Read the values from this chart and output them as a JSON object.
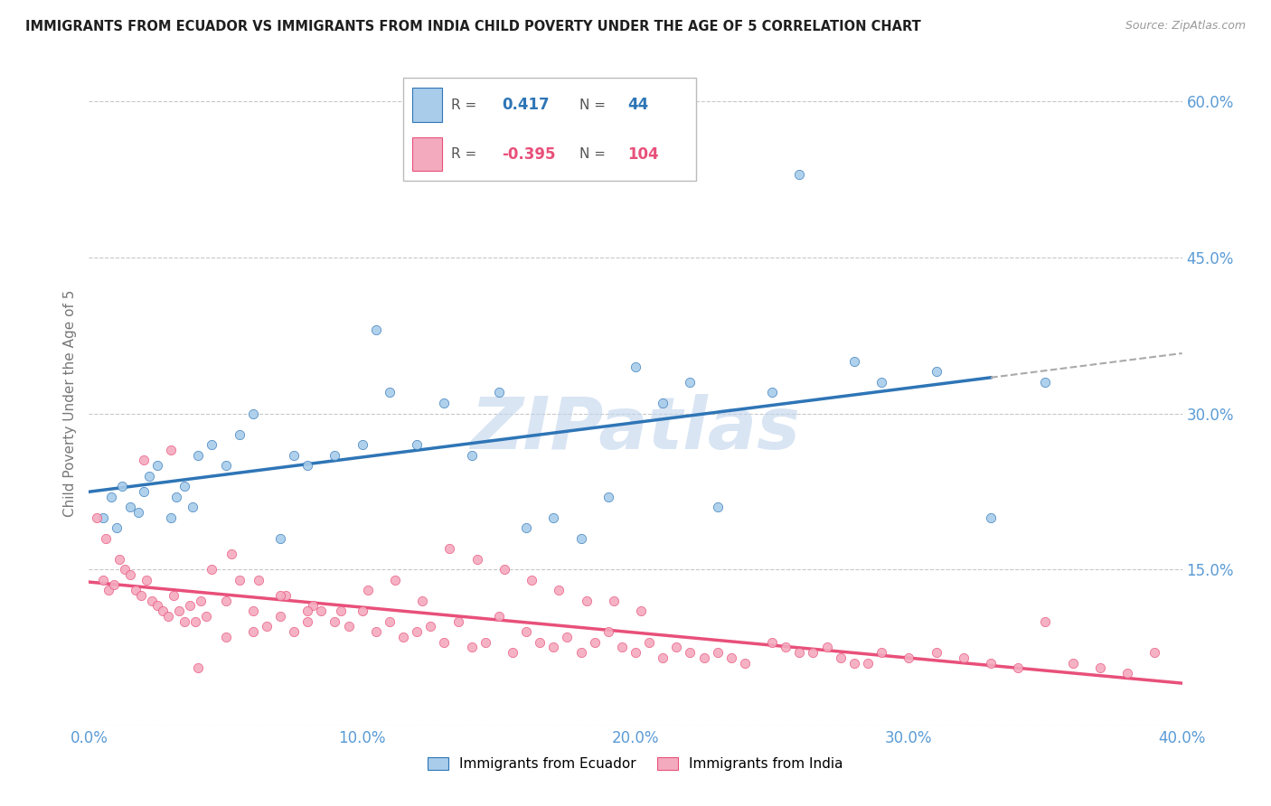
{
  "title": "IMMIGRANTS FROM ECUADOR VS IMMIGRANTS FROM INDIA CHILD POVERTY UNDER THE AGE OF 5 CORRELATION CHART",
  "source": "Source: ZipAtlas.com",
  "ylabel": "Child Poverty Under the Age of 5",
  "xlabel_ticks": [
    "0.0%",
    "10.0%",
    "20.0%",
    "30.0%",
    "40.0%"
  ],
  "xlabel_vals": [
    0.0,
    10.0,
    20.0,
    30.0,
    40.0
  ],
  "ylabel_right_ticks": [
    "60.0%",
    "45.0%",
    "30.0%",
    "15.0%"
  ],
  "ylabel_right_vals": [
    60.0,
    45.0,
    30.0,
    15.0
  ],
  "xlim": [
    0.0,
    40.0
  ],
  "ylim": [
    0.0,
    62.0
  ],
  "ecuador_R": 0.417,
  "ecuador_N": 44,
  "india_R": -0.395,
  "india_N": 104,
  "ecuador_color": "#A8CCEA",
  "india_color": "#F4AABE",
  "ecuador_line_color": "#2E75B6",
  "india_line_color": "#E8507A",
  "grid_color": "#C8C8C8",
  "title_color": "#1F1F1F",
  "axis_label_color": "#5B9BD5",
  "watermark_color": "#C0D4EC",
  "ecuador_scatter_x": [
    0.5,
    0.8,
    1.0,
    1.2,
    1.5,
    1.8,
    2.0,
    2.2,
    2.5,
    3.0,
    3.2,
    3.5,
    3.8,
    4.0,
    4.5,
    5.0,
    5.5,
    6.0,
    7.0,
    7.5,
    8.0,
    9.0,
    10.0,
    10.5,
    11.0,
    12.0,
    13.0,
    14.0,
    15.0,
    16.0,
    17.0,
    18.0,
    19.0,
    20.0,
    21.0,
    22.0,
    23.0,
    25.0,
    26.0,
    28.0,
    29.0,
    31.0,
    33.0,
    35.0
  ],
  "ecuador_scatter_y": [
    20.0,
    22.0,
    19.0,
    23.0,
    21.0,
    20.5,
    22.5,
    24.0,
    25.0,
    20.0,
    22.0,
    23.0,
    21.0,
    26.0,
    27.0,
    25.0,
    28.0,
    30.0,
    18.0,
    26.0,
    25.0,
    26.0,
    27.0,
    38.0,
    32.0,
    27.0,
    31.0,
    26.0,
    32.0,
    19.0,
    20.0,
    18.0,
    22.0,
    34.5,
    31.0,
    33.0,
    21.0,
    32.0,
    53.0,
    35.0,
    33.0,
    34.0,
    20.0,
    33.0
  ],
  "india_scatter_x": [
    0.3,
    0.5,
    0.7,
    0.9,
    1.1,
    1.3,
    1.5,
    1.7,
    1.9,
    2.1,
    2.3,
    2.5,
    2.7,
    2.9,
    3.1,
    3.3,
    3.5,
    3.7,
    3.9,
    4.1,
    4.3,
    4.5,
    5.0,
    5.5,
    6.0,
    6.5,
    7.0,
    7.5,
    8.0,
    8.5,
    9.0,
    9.5,
    10.0,
    10.5,
    11.0,
    11.5,
    12.0,
    12.5,
    13.0,
    13.5,
    14.0,
    14.5,
    15.0,
    15.5,
    16.0,
    16.5,
    17.0,
    17.5,
    18.0,
    18.5,
    19.0,
    19.5,
    20.0,
    20.5,
    21.0,
    21.5,
    22.0,
    22.5,
    23.0,
    23.5,
    24.0,
    25.0,
    26.0,
    27.0,
    28.0,
    29.0,
    30.0,
    31.0,
    32.0,
    33.0,
    34.0,
    35.0,
    36.0,
    37.0,
    38.0,
    39.0,
    25.5,
    26.5,
    27.5,
    28.5,
    13.2,
    14.2,
    15.2,
    16.2,
    17.2,
    18.2,
    19.2,
    20.2,
    5.2,
    6.2,
    7.2,
    8.2,
    9.2,
    10.2,
    11.2,
    12.2,
    2.0,
    3.0,
    4.0,
    5.0,
    6.0,
    7.0,
    8.0,
    0.6
  ],
  "india_scatter_y": [
    20.0,
    14.0,
    13.0,
    13.5,
    16.0,
    15.0,
    14.5,
    13.0,
    12.5,
    14.0,
    12.0,
    11.5,
    11.0,
    10.5,
    12.5,
    11.0,
    10.0,
    11.5,
    10.0,
    12.0,
    10.5,
    15.0,
    12.0,
    14.0,
    11.0,
    9.5,
    10.5,
    9.0,
    10.0,
    11.0,
    10.0,
    9.5,
    11.0,
    9.0,
    10.0,
    8.5,
    9.0,
    9.5,
    8.0,
    10.0,
    7.5,
    8.0,
    10.5,
    7.0,
    9.0,
    8.0,
    7.5,
    8.5,
    7.0,
    8.0,
    9.0,
    7.5,
    7.0,
    8.0,
    6.5,
    7.5,
    7.0,
    6.5,
    7.0,
    6.5,
    6.0,
    8.0,
    7.0,
    7.5,
    6.0,
    7.0,
    6.5,
    7.0,
    6.5,
    6.0,
    5.5,
    10.0,
    6.0,
    5.5,
    5.0,
    7.0,
    7.5,
    7.0,
    6.5,
    6.0,
    17.0,
    16.0,
    15.0,
    14.0,
    13.0,
    12.0,
    12.0,
    11.0,
    16.5,
    14.0,
    12.5,
    11.5,
    11.0,
    13.0,
    14.0,
    12.0,
    25.5,
    26.5,
    5.5,
    8.5,
    9.0,
    12.5,
    11.0,
    18.0
  ]
}
